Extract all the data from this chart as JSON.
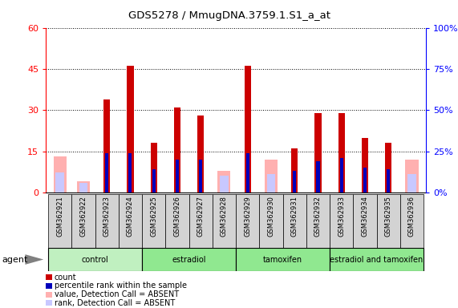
{
  "title": "GDS5278 / MmugDNA.3759.1.S1_a_at",
  "samples": [
    "GSM362921",
    "GSM362922",
    "GSM362923",
    "GSM362924",
    "GSM362925",
    "GSM362926",
    "GSM362927",
    "GSM362928",
    "GSM362929",
    "GSM362930",
    "GSM362931",
    "GSM362932",
    "GSM362933",
    "GSM362934",
    "GSM362935",
    "GSM362936"
  ],
  "count_values": [
    0,
    0,
    34,
    46,
    18,
    31,
    28,
    0,
    46,
    0,
    16,
    29,
    29,
    20,
    18,
    0
  ],
  "rank_values": [
    0,
    0,
    24,
    24,
    14,
    20,
    20,
    0,
    24,
    0,
    13,
    19,
    21,
    15,
    14,
    0
  ],
  "absent_count": [
    13,
    4,
    0,
    0,
    0,
    0,
    0,
    8,
    0,
    12,
    0,
    0,
    0,
    0,
    0,
    12
  ],
  "absent_rank": [
    12,
    6,
    0,
    0,
    0,
    0,
    0,
    10,
    0,
    11,
    0,
    0,
    0,
    0,
    0,
    11
  ],
  "ylim_left": [
    0,
    60
  ],
  "ylim_right": [
    0,
    100
  ],
  "yticks_left": [
    0,
    15,
    30,
    45,
    60
  ],
  "yticks_right": [
    0,
    25,
    50,
    75,
    100
  ],
  "count_color": "#cc0000",
  "rank_color": "#0000bb",
  "absent_count_color": "#ffb0b0",
  "absent_rank_color": "#c8c8ff",
  "group_labels": [
    "control",
    "estradiol",
    "tamoxifen",
    "estradiol and tamoxifen"
  ],
  "group_colors": [
    "#c0f0c0",
    "#90e890",
    "#90e890",
    "#90e890"
  ],
  "group_ranges": [
    [
      0,
      4
    ],
    [
      4,
      8
    ],
    [
      8,
      12
    ],
    [
      12,
      16
    ]
  ],
  "agent_label": "agent"
}
